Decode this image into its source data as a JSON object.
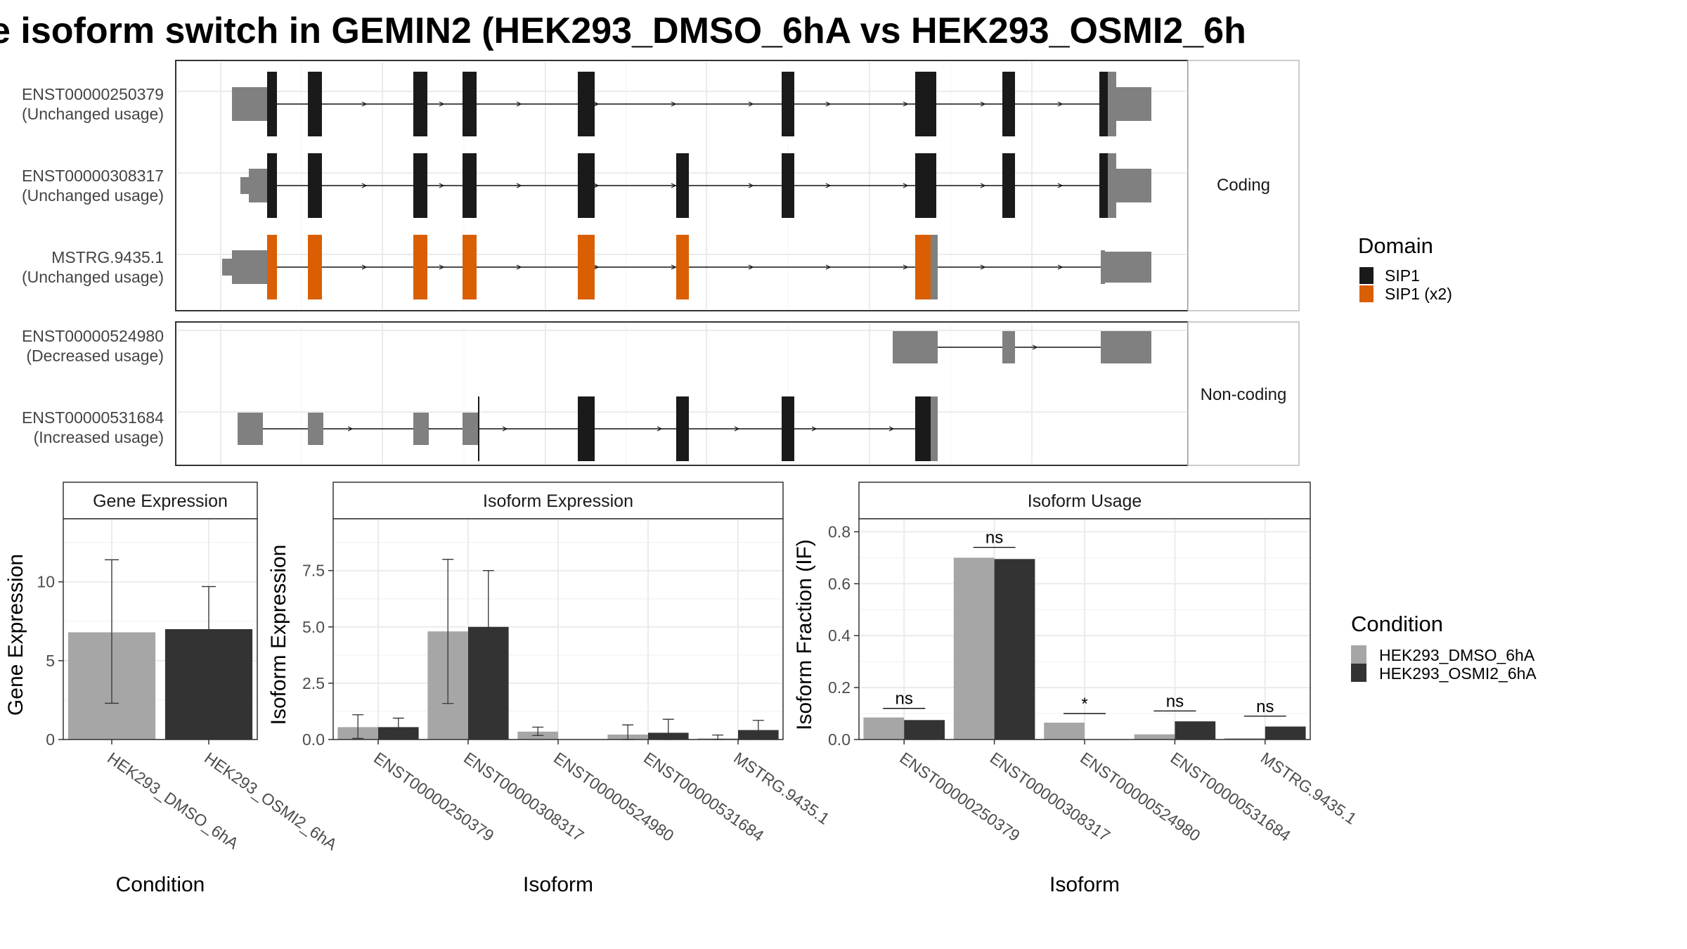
{
  "title": "e isoform switch in GEMIN2 (HEK293_DMSO_6hA vs HEK293_OSMI2_6h",
  "colors": {
    "domain_sip1": "#1a1a1a",
    "domain_sip1x2": "#d95f02",
    "utr": "#808080",
    "dmso": "#a6a6a6",
    "osmi2": "#333333"
  },
  "structure": {
    "panels": [
      {
        "label": "Coding",
        "isoforms": [
          {
            "id": "ENST00000250379",
            "usage": "(Unchanged usage)"
          },
          {
            "id": "ENST00000308317",
            "usage": "(Unchanged usage)"
          },
          {
            "id": "MSTRG.9435.1",
            "usage": "(Unchanged usage)"
          }
        ]
      },
      {
        "label": "Non-coding",
        "isoforms": [
          {
            "id": "ENST00000524980",
            "usage": "(Decreased usage)"
          },
          {
            "id": "ENST00000531684",
            "usage": "(Increased usage)"
          }
        ]
      }
    ],
    "legend_title": "Domain",
    "legend_items": [
      "SIP1",
      "SIP1 (x2)"
    ]
  },
  "chart_data": [
    {
      "type": "bar",
      "title": "Gene Expression",
      "xlabel": "Condition",
      "ylabel": "Gene Expression",
      "categories": [
        "HEK293_DMSO_6hA",
        "HEK293_OSMI2_6hA"
      ],
      "values": [
        6.8,
        7.0
      ],
      "error_low": [
        2.3,
        4.3
      ],
      "error_high": [
        11.4,
        9.7
      ],
      "ylim": [
        0,
        14
      ],
      "yticks": [
        0,
        5,
        10
      ],
      "grid": true
    },
    {
      "type": "bar",
      "title": "Isoform Expression",
      "xlabel": "Isoform",
      "ylabel": "Isoform Expression",
      "categories": [
        "ENST00000250379",
        "ENST00000308317",
        "ENST00000524980",
        "ENST00000531684",
        "MSTRG.9435.1"
      ],
      "series": [
        {
          "name": "HEK293_DMSO_6hA",
          "values": [
            0.55,
            4.8,
            0.35,
            0.22,
            0.05
          ],
          "error_low": [
            0.05,
            1.6,
            0.18,
            0.0,
            0.0
          ],
          "error_high": [
            1.1,
            8.0,
            0.55,
            0.65,
            0.2
          ]
        },
        {
          "name": "HEK293_OSMI2_6hA",
          "values": [
            0.55,
            5.0,
            0.0,
            0.3,
            0.42
          ],
          "error_low": [
            0.2,
            2.5,
            0.0,
            0.0,
            0.1
          ],
          "error_high": [
            0.95,
            7.5,
            0.0,
            0.9,
            0.85
          ]
        }
      ],
      "ylim": [
        0,
        9.8
      ],
      "yticks": [
        0,
        2.5,
        5,
        7.5
      ],
      "ytick_labels": [
        "0.0",
        "2.5",
        "5.0",
        "7.5"
      ],
      "grid": true
    },
    {
      "type": "bar",
      "title": "Isoform Usage",
      "xlabel": "Isoform",
      "ylabel": "Isoform Fraction (IF)",
      "categories": [
        "ENST00000250379",
        "ENST00000308317",
        "ENST00000524980",
        "ENST00000531684",
        "MSTRG.9435.1"
      ],
      "series": [
        {
          "name": "HEK293_DMSO_6hA",
          "values": [
            0.085,
            0.7,
            0.065,
            0.02,
            0.005
          ]
        },
        {
          "name": "HEK293_OSMI2_6hA",
          "values": [
            0.075,
            0.695,
            0.0,
            0.07,
            0.05
          ]
        }
      ],
      "significance": [
        "ns",
        "ns",
        "*",
        "ns",
        "ns"
      ],
      "significance_y": [
        0.12,
        0.74,
        0.1,
        0.11,
        0.09
      ],
      "ylim": [
        0,
        0.85
      ],
      "yticks": [
        0,
        0.2,
        0.4,
        0.6,
        0.8
      ],
      "ytick_labels": [
        "0.0",
        "0.2",
        "0.4",
        "0.6",
        "0.8"
      ],
      "grid": true
    }
  ],
  "condition_legend": {
    "title": "Condition",
    "items": [
      "HEK293_DMSO_6hA",
      "HEK293_OSMI2_6hA"
    ]
  }
}
